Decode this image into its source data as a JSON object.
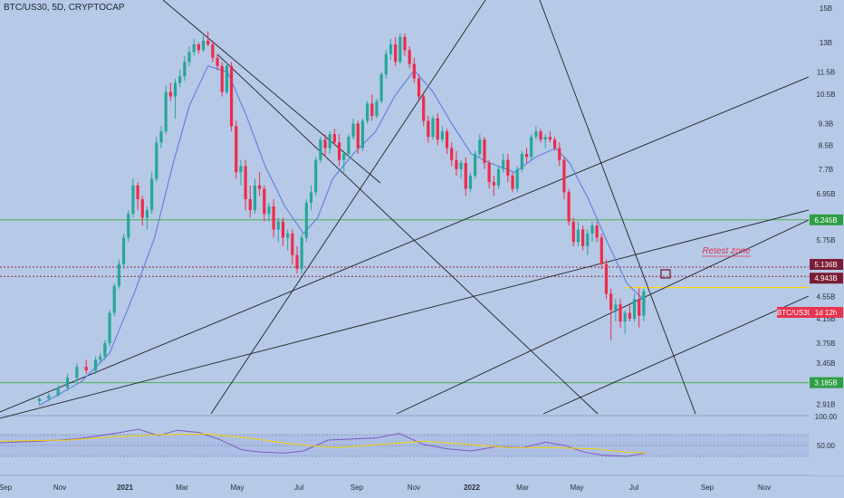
{
  "header": {
    "symbol_title": "BTC/US30, 5D, CRYPTOCAP"
  },
  "colors": {
    "background": "#b6c9e6",
    "up": "#26a69a",
    "down": "#ef2a4a",
    "ma_line": "#5b7fe0",
    "trend_line": "#222222",
    "support_line": "#4caf50",
    "resistance_dotted": "#8a2a3a",
    "yellow_line": "#ffd600",
    "rsi_line": "#7e57c2",
    "rsi_ma": "#f2d200",
    "label_dark": "#7a1d35",
    "label_green": "#2e9e44",
    "label_red": "#e8334f"
  },
  "price_axis": {
    "labels": [
      "15B",
      "13B",
      "11.5B",
      "10.5B",
      "9.3B",
      "8.5B",
      "7.7B",
      "6.95B",
      "5.75B",
      "4.55B",
      "4.15B",
      "3.75B",
      "3.45B",
      "2.91B"
    ]
  },
  "price_badges": {
    "support_upper": "6.245B",
    "resistance_top": "5.136B",
    "resistance_bottom": "4.943B",
    "current_symbol": "BTC/US30",
    "current_time": "1d 12h",
    "support_lower": "3.185B"
  },
  "annotation": {
    "retest_zone": "Retest zone"
  },
  "rsi_axis": {
    "labels": [
      "100.00",
      "50.00"
    ]
  },
  "time_axis": {
    "labels": [
      "Sep",
      "Nov",
      "2021",
      "Mar",
      "May",
      "Jul",
      "Sep",
      "Nov",
      "2022",
      "Mar",
      "May",
      "Jul",
      "Sep",
      "Nov"
    ]
  },
  "chart_data": {
    "type": "candlestick",
    "title": "BTC/US30, 5D, CRYPTOCAP",
    "y_scale": "log",
    "ylim": [
      2.8,
      15.5
    ],
    "date_range": [
      "2020-08-20",
      "2022-12-31"
    ],
    "candles": [
      [
        "2020-10-01",
        2.95,
        3.0,
        2.9,
        2.98
      ],
      [
        "2020-10-11",
        2.98,
        3.05,
        2.95,
        3.02
      ],
      [
        "2020-10-21",
        3.02,
        3.15,
        3.0,
        3.12
      ],
      [
        "2020-10-31",
        3.12,
        3.3,
        3.08,
        3.25
      ],
      [
        "2020-11-10",
        3.25,
        3.45,
        3.2,
        3.4
      ],
      [
        "2020-11-20",
        3.4,
        3.5,
        3.3,
        3.35
      ],
      [
        "2020-11-30",
        3.35,
        3.55,
        3.3,
        3.5
      ],
      [
        "2020-12-05",
        3.5,
        3.6,
        3.45,
        3.55
      ],
      [
        "2020-12-10",
        3.55,
        3.8,
        3.5,
        3.75
      ],
      [
        "2020-12-15",
        3.75,
        4.3,
        3.7,
        4.25
      ],
      [
        "2020-12-20",
        4.25,
        4.8,
        4.2,
        4.75
      ],
      [
        "2020-12-25",
        4.75,
        5.3,
        4.7,
        5.2
      ],
      [
        "2020-12-30",
        5.2,
        5.9,
        5.1,
        5.8
      ],
      [
        "2021-01-04",
        5.8,
        6.5,
        5.7,
        6.4
      ],
      [
        "2021-01-09",
        6.4,
        7.4,
        6.3,
        7.2
      ],
      [
        "2021-01-14",
        7.2,
        7.3,
        6.5,
        6.8
      ],
      [
        "2021-01-19",
        6.8,
        6.9,
        6.1,
        6.3
      ],
      [
        "2021-01-24",
        6.3,
        6.6,
        6.0,
        6.5
      ],
      [
        "2021-01-29",
        6.5,
        7.6,
        6.4,
        7.4
      ],
      [
        "2021-02-03",
        7.4,
        8.8,
        7.3,
        8.6
      ],
      [
        "2021-02-08",
        8.6,
        9.2,
        8.4,
        9.0
      ],
      [
        "2021-02-13",
        9.0,
        10.9,
        8.9,
        10.6
      ],
      [
        "2021-02-18",
        10.6,
        11.0,
        10.2,
        10.4
      ],
      [
        "2021-02-23",
        10.4,
        11.2,
        9.5,
        11.0
      ],
      [
        "2021-02-28",
        11.0,
        11.6,
        10.8,
        11.3
      ],
      [
        "2021-03-05",
        11.3,
        12.3,
        11.1,
        12.0
      ],
      [
        "2021-03-10",
        12.0,
        12.8,
        11.8,
        12.5
      ],
      [
        "2021-03-15",
        12.5,
        13.2,
        12.3,
        12.9
      ],
      [
        "2021-03-20",
        12.9,
        13.0,
        12.4,
        12.6
      ],
      [
        "2021-03-25",
        12.6,
        13.4,
        12.5,
        13.1
      ],
      [
        "2021-03-30",
        13.1,
        13.6,
        12.8,
        12.9
      ],
      [
        "2021-04-04",
        12.9,
        13.1,
        12.0,
        12.2
      ],
      [
        "2021-04-09",
        12.2,
        12.4,
        11.6,
        11.8
      ],
      [
        "2021-04-14",
        11.8,
        12.0,
        10.4,
        10.6
      ],
      [
        "2021-04-19",
        10.6,
        12.0,
        10.5,
        11.8
      ],
      [
        "2021-04-24",
        11.8,
        12.0,
        9.0,
        9.2
      ],
      [
        "2021-04-29",
        9.2,
        9.4,
        7.4,
        7.6
      ],
      [
        "2021-05-04",
        7.6,
        8.0,
        7.2,
        7.8
      ],
      [
        "2021-05-09",
        7.8,
        8.0,
        6.5,
        6.8
      ],
      [
        "2021-05-14",
        6.8,
        7.2,
        6.3,
        6.5
      ],
      [
        "2021-05-19",
        6.5,
        7.4,
        6.4,
        7.2
      ],
      [
        "2021-05-24",
        7.2,
        7.6,
        6.9,
        7.1
      ],
      [
        "2021-05-29",
        7.1,
        7.2,
        6.2,
        6.4
      ],
      [
        "2021-06-03",
        6.4,
        6.7,
        6.2,
        6.6
      ],
      [
        "2021-06-08",
        6.6,
        6.8,
        5.8,
        6.0
      ],
      [
        "2021-06-13",
        6.0,
        6.3,
        5.7,
        6.2
      ],
      [
        "2021-06-18",
        6.2,
        6.3,
        5.6,
        5.8
      ],
      [
        "2021-06-23",
        5.8,
        6.0,
        5.5,
        5.9
      ],
      [
        "2021-06-28",
        5.9,
        6.0,
        5.2,
        5.4
      ],
      [
        "2021-07-03",
        5.4,
        5.6,
        5.0,
        5.1
      ],
      [
        "2021-07-08",
        5.1,
        5.9,
        5.0,
        5.8
      ],
      [
        "2021-07-13",
        5.8,
        6.8,
        5.7,
        6.7
      ],
      [
        "2021-07-18",
        6.7,
        7.2,
        6.5,
        7.0
      ],
      [
        "2021-07-23",
        7.0,
        8.1,
        6.9,
        8.0
      ],
      [
        "2021-07-28",
        8.0,
        8.8,
        7.9,
        8.7
      ],
      [
        "2021-08-02",
        8.7,
        8.9,
        8.1,
        8.4
      ],
      [
        "2021-08-07",
        8.4,
        9.0,
        8.2,
        8.9
      ],
      [
        "2021-08-12",
        8.9,
        9.1,
        8.5,
        8.6
      ],
      [
        "2021-08-17",
        8.6,
        8.9,
        7.8,
        8.0
      ],
      [
        "2021-08-22",
        8.0,
        8.3,
        7.6,
        8.2
      ],
      [
        "2021-08-27",
        8.2,
        8.9,
        8.1,
        8.8
      ],
      [
        "2021-09-01",
        8.8,
        9.5,
        8.7,
        9.3
      ],
      [
        "2021-09-06",
        9.3,
        9.4,
        8.2,
        8.4
      ],
      [
        "2021-09-11",
        8.4,
        9.5,
        8.3,
        9.4
      ],
      [
        "2021-09-16",
        9.4,
        10.2,
        9.3,
        10.1
      ],
      [
        "2021-09-21",
        10.1,
        10.5,
        9.4,
        9.6
      ],
      [
        "2021-09-26",
        9.6,
        10.3,
        9.5,
        10.2
      ],
      [
        "2021-10-01",
        10.2,
        11.5,
        10.1,
        11.4
      ],
      [
        "2021-10-06",
        11.4,
        12.6,
        11.2,
        12.4
      ],
      [
        "2021-10-11",
        12.4,
        13.2,
        12.1,
        12.9
      ],
      [
        "2021-10-16",
        12.9,
        13.3,
        11.8,
        12.0
      ],
      [
        "2021-10-21",
        12.0,
        13.5,
        11.9,
        13.3
      ],
      [
        "2021-10-26",
        13.3,
        13.5,
        12.3,
        12.6
      ],
      [
        "2021-10-31",
        12.6,
        12.8,
        11.7,
        11.9
      ],
      [
        "2021-11-05",
        11.9,
        12.2,
        11.0,
        11.2
      ],
      [
        "2021-11-10",
        11.2,
        11.4,
        10.2,
        10.4
      ],
      [
        "2021-11-15",
        10.4,
        10.6,
        9.2,
        9.4
      ],
      [
        "2021-11-20",
        9.4,
        9.6,
        8.6,
        8.8
      ],
      [
        "2021-11-25",
        8.8,
        9.6,
        8.7,
        9.5
      ],
      [
        "2021-11-30",
        9.5,
        9.7,
        8.5,
        8.7
      ],
      [
        "2021-12-05",
        8.7,
        9.2,
        8.6,
        9.0
      ],
      [
        "2021-12-10",
        9.0,
        9.1,
        8.2,
        8.4
      ],
      [
        "2021-12-15",
        8.4,
        8.6,
        7.8,
        8.0
      ],
      [
        "2021-12-20",
        8.0,
        8.3,
        7.5,
        7.7
      ],
      [
        "2021-12-25",
        7.7,
        8.0,
        7.4,
        7.9
      ],
      [
        "2021-12-30",
        7.9,
        8.1,
        6.9,
        7.1
      ],
      [
        "2022-01-04",
        7.1,
        7.6,
        7.0,
        7.5
      ],
      [
        "2022-01-09",
        7.5,
        8.3,
        7.4,
        8.2
      ],
      [
        "2022-01-14",
        8.2,
        8.9,
        8.1,
        8.7
      ],
      [
        "2022-01-19",
        8.7,
        8.8,
        7.7,
        7.9
      ],
      [
        "2022-01-24",
        7.9,
        8.0,
        7.1,
        7.3
      ],
      [
        "2022-01-29",
        7.3,
        7.5,
        6.9,
        7.2
      ],
      [
        "2022-02-03",
        7.2,
        7.8,
        7.1,
        7.7
      ],
      [
        "2022-02-08",
        7.7,
        8.2,
        7.6,
        8.0
      ],
      [
        "2022-02-13",
        8.0,
        8.2,
        7.3,
        7.5
      ],
      [
        "2022-02-18",
        7.5,
        7.6,
        7.0,
        7.1
      ],
      [
        "2022-02-23",
        7.1,
        7.8,
        7.0,
        7.7
      ],
      [
        "2022-02-28",
        7.7,
        8.3,
        7.6,
        8.2
      ],
      [
        "2022-03-05",
        8.2,
        8.4,
        7.9,
        8.1
      ],
      [
        "2022-03-10",
        8.1,
        8.9,
        8.0,
        8.8
      ],
      [
        "2022-03-15",
        8.8,
        9.2,
        8.7,
        9.0
      ],
      [
        "2022-03-20",
        9.0,
        9.1,
        8.6,
        8.7
      ],
      [
        "2022-03-25",
        8.7,
        8.9,
        8.4,
        8.8
      ],
      [
        "2022-03-30",
        8.8,
        9.0,
        8.6,
        8.7
      ],
      [
        "2022-04-04",
        8.7,
        8.8,
        8.3,
        8.4
      ],
      [
        "2022-04-09",
        8.4,
        8.6,
        7.8,
        8.0
      ],
      [
        "2022-04-14",
        8.0,
        8.1,
        6.8,
        7.0
      ],
      [
        "2022-04-19",
        7.0,
        7.1,
        6.1,
        6.2
      ],
      [
        "2022-04-24",
        6.2,
        6.3,
        5.6,
        5.7
      ],
      [
        "2022-04-29",
        5.7,
        6.2,
        5.6,
        6.0
      ],
      [
        "2022-05-04",
        6.0,
        6.1,
        5.5,
        5.6
      ],
      [
        "2022-05-09",
        5.6,
        6.0,
        5.4,
        5.9
      ],
      [
        "2022-05-14",
        5.9,
        6.2,
        5.7,
        6.1
      ],
      [
        "2022-05-19",
        6.1,
        6.2,
        5.7,
        5.8
      ],
      [
        "2022-05-24",
        5.8,
        5.9,
        5.1,
        5.2
      ],
      [
        "2022-05-29",
        5.2,
        5.3,
        4.5,
        4.6
      ],
      [
        "2022-06-03",
        4.6,
        4.7,
        3.8,
        4.3
      ],
      [
        "2022-06-08",
        4.3,
        4.5,
        4.1,
        4.4
      ],
      [
        "2022-06-13",
        4.4,
        4.5,
        4.0,
        4.1
      ],
      [
        "2022-06-18",
        4.1,
        4.3,
        3.9,
        4.25
      ],
      [
        "2022-06-23",
        4.25,
        4.4,
        4.1,
        4.15
      ],
      [
        "2022-06-28",
        4.15,
        4.6,
        4.1,
        4.5
      ],
      [
        "2022-07-03",
        4.5,
        4.7,
        4.0,
        4.2
      ],
      [
        "2022-07-08",
        4.2,
        4.7,
        4.1,
        4.65
      ]
    ],
    "moving_average": [
      [
        "2020-10-01",
        2.9
      ],
      [
        "2020-11-15",
        3.2
      ],
      [
        "2020-12-15",
        3.6
      ],
      [
        "2021-01-10",
        4.6
      ],
      [
        "2021-02-01",
        5.8
      ],
      [
        "2021-02-20",
        7.8
      ],
      [
        "2021-03-10",
        10.0
      ],
      [
        "2021-03-30",
        11.8
      ],
      [
        "2021-04-20",
        11.5
      ],
      [
        "2021-05-10",
        9.6
      ],
      [
        "2021-05-30",
        7.8
      ],
      [
        "2021-06-20",
        6.6
      ],
      [
        "2021-07-10",
        5.9
      ],
      [
        "2021-07-25",
        6.3
      ],
      [
        "2021-08-10",
        7.4
      ],
      [
        "2021-09-01",
        8.2
      ],
      [
        "2021-09-25",
        9.0
      ],
      [
        "2021-10-15",
        10.4
      ],
      [
        "2021-11-05",
        11.6
      ],
      [
        "2021-11-25",
        10.6
      ],
      [
        "2021-12-15",
        9.3
      ],
      [
        "2022-01-05",
        8.2
      ],
      [
        "2022-01-25",
        7.9
      ],
      [
        "2022-02-20",
        7.6
      ],
      [
        "2022-03-15",
        8.1
      ],
      [
        "2022-04-05",
        8.4
      ],
      [
        "2022-04-20",
        7.9
      ],
      [
        "2022-05-10",
        6.8
      ],
      [
        "2022-05-30",
        5.7
      ],
      [
        "2022-06-20",
        4.8
      ],
      [
        "2022-07-10",
        4.45
      ]
    ],
    "horizontal_levels": [
      6.245,
      5.136,
      4.943,
      3.185
    ],
    "current_level": 4.72,
    "rsi": {
      "ylim": [
        0,
        100
      ],
      "levels": [
        70,
        50,
        30
      ],
      "values": [
        [
          "2020-08-20",
          55
        ],
        [
          "2020-10-01",
          58
        ],
        [
          "2020-11-10",
          62
        ],
        [
          "2020-12-20",
          72
        ],
        [
          "2021-01-15",
          80
        ],
        [
          "2021-02-05",
          68
        ],
        [
          "2021-02-25",
          78
        ],
        [
          "2021-03-20",
          74
        ],
        [
          "2021-04-10",
          62
        ],
        [
          "2021-05-05",
          42
        ],
        [
          "2021-05-25",
          38
        ],
        [
          "2021-06-20",
          36
        ],
        [
          "2021-07-10",
          40
        ],
        [
          "2021-08-05",
          60
        ],
        [
          "2021-09-01",
          62
        ],
        [
          "2021-09-25",
          64
        ],
        [
          "2021-10-20",
          72
        ],
        [
          "2021-11-15",
          52
        ],
        [
          "2021-12-10",
          44
        ],
        [
          "2022-01-05",
          40
        ],
        [
          "2022-02-01",
          48
        ],
        [
          "2022-03-01",
          46
        ],
        [
          "2022-03-25",
          56
        ],
        [
          "2022-04-15",
          50
        ],
        [
          "2022-05-05",
          38
        ],
        [
          "2022-05-25",
          32
        ],
        [
          "2022-06-20",
          30
        ],
        [
          "2022-07-10",
          36
        ]
      ],
      "ma": [
        [
          "2020-08-20",
          58
        ],
        [
          "2020-11-01",
          60
        ],
        [
          "2020-12-20",
          66
        ],
        [
          "2021-02-10",
          70
        ],
        [
          "2021-04-01",
          71
        ],
        [
          "2021-05-20",
          62
        ],
        [
          "2021-06-30",
          52
        ],
        [
          "2021-08-15",
          46
        ],
        [
          "2021-10-01",
          52
        ],
        [
          "2021-11-15",
          58
        ],
        [
          "2022-01-01",
          52
        ],
        [
          "2022-02-15",
          46
        ],
        [
          "2022-04-01",
          46
        ],
        [
          "2022-05-15",
          44
        ],
        [
          "2022-06-20",
          38
        ],
        [
          "2022-07-10",
          36
        ]
      ]
    }
  }
}
